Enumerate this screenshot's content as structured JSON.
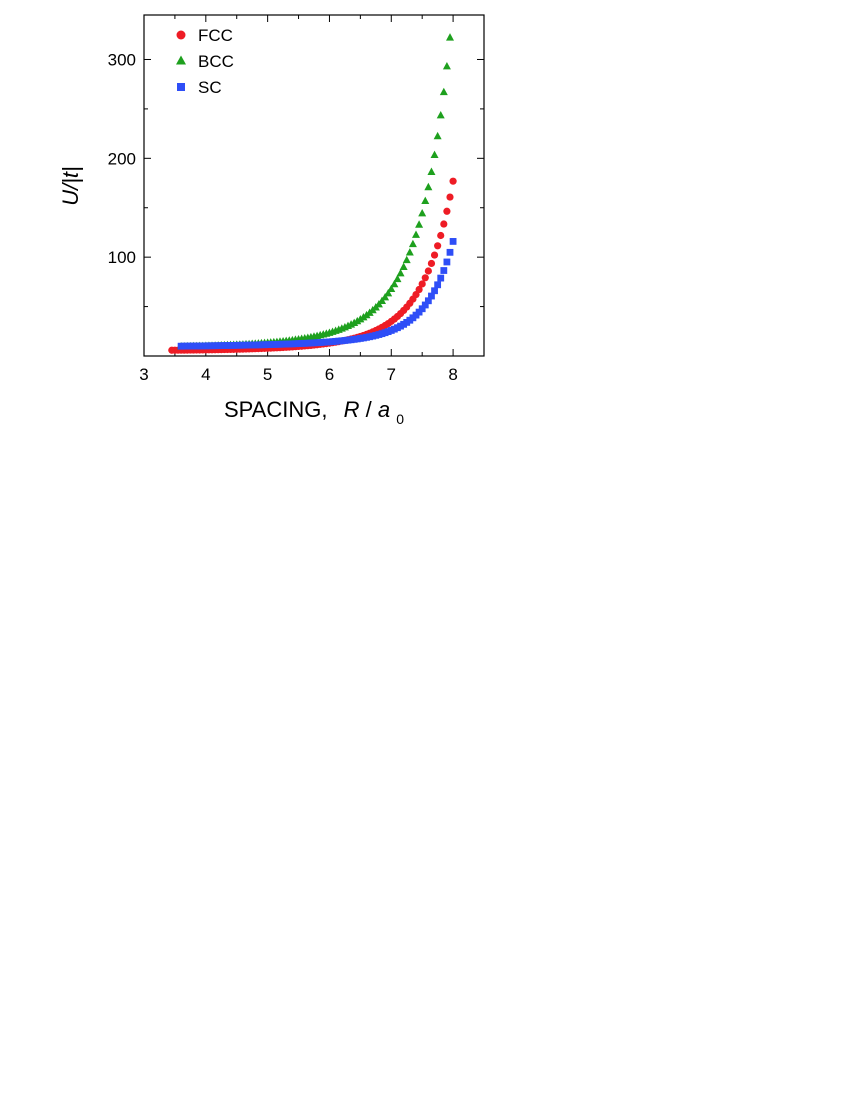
{
  "chart_data": {
    "type": "scatter",
    "xlabel": {
      "prefix": "SPACING,",
      "var": "R",
      "slash": "/",
      "sub_base": "a",
      "sub_index": "0"
    },
    "ylabel": {
      "text": "U/|t|"
    },
    "xlim": [
      3,
      8.5
    ],
    "ylim": [
      0,
      345
    ],
    "x_ticks": [
      3,
      4,
      5,
      6,
      7,
      8
    ],
    "y_ticks": [
      100,
      200,
      300
    ],
    "x_minor_ticks": [
      3.5,
      4.5,
      5.5,
      6.5,
      7.5
    ],
    "y_minor_ticks": [
      50,
      150,
      250
    ],
    "grid": false,
    "legend_position": "top-left",
    "series": [
      {
        "name": "FCC",
        "color": "#ee1c25",
        "marker": "circle",
        "x_start": 3.45,
        "x_end": 8.0,
        "x_step": 0.05,
        "y_model": {
          "a": 3.89,
          "b": 0.1193,
          "c": 1.95,
          "d": 0.2207,
          "x0": 3.5
        }
      },
      {
        "name": "BCC",
        "color": "#1ea01e",
        "marker": "triangle",
        "x_start": 3.6,
        "x_end": 7.95,
        "x_step": 0.05,
        "y_model": {
          "a": 5.89,
          "b": 0.1193,
          "c": 3.95,
          "d": 0.2207,
          "x0": 3.5
        }
      },
      {
        "name": "SC",
        "color": "#2e4ef7",
        "marker": "square",
        "x_start": 3.6,
        "x_end": 8.0,
        "x_step": 0.05,
        "y_model": {
          "a": 9.25,
          "b": 0.0817,
          "c": 0.686,
          "d": 0.2587,
          "x0": 3.6
        }
      }
    ]
  }
}
